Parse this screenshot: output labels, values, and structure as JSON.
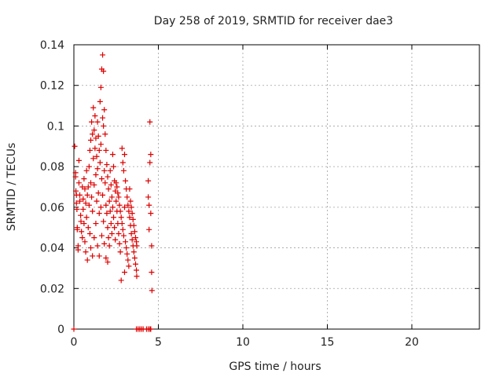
{
  "chart_data": {
    "type": "scatter",
    "title": "Day 258 of 2019, SRMTID for receiver dae3",
    "xlabel": "GPS time / hours",
    "ylabel": "SRMTID / TECUs",
    "xlim": [
      0,
      24
    ],
    "ylim": [
      0,
      0.14
    ],
    "xticks": [
      0,
      5,
      10,
      15,
      20
    ],
    "xtick_labels": [
      "0",
      "5",
      "10",
      "15",
      "20"
    ],
    "yticks": [
      0,
      0.02,
      0.04,
      0.06,
      0.08,
      0.1,
      0.12,
      0.14
    ],
    "ytick_labels": [
      "0",
      "0.02",
      "0.04",
      "0.06",
      "0.08",
      "0.1",
      "0.12",
      "0.14"
    ],
    "grid": true,
    "marker": "+",
    "series": [
      {
        "name": "SRMTID",
        "color": "#dd0000",
        "points": [
          [
            0.05,
            0.09
          ],
          [
            0.1,
            0.077
          ],
          [
            0.1,
            0.075
          ],
          [
            0.12,
            0.068
          ],
          [
            0.15,
            0.066
          ],
          [
            0.15,
            0.062
          ],
          [
            0.18,
            0.059
          ],
          [
            0.2,
            0.05
          ],
          [
            0.2,
            0.049
          ],
          [
            0.25,
            0.041
          ],
          [
            0.25,
            0.039
          ],
          [
            0.3,
            0.083
          ],
          [
            0.3,
            0.072
          ],
          [
            0.35,
            0.066
          ],
          [
            0.35,
            0.063
          ],
          [
            0.4,
            0.056
          ],
          [
            0.42,
            0.053
          ],
          [
            0.45,
            0.048
          ],
          [
            0.5,
            0.07
          ],
          [
            0.5,
            0.045
          ],
          [
            0.55,
            0.064
          ],
          [
            0.55,
            0.059
          ],
          [
            0.6,
            0.074
          ],
          [
            0.6,
            0.052
          ],
          [
            0.65,
            0.069
          ],
          [
            0.65,
            0.043
          ],
          [
            0.7,
            0.062
          ],
          [
            0.7,
            0.038
          ],
          [
            0.75,
            0.078
          ],
          [
            0.75,
            0.055
          ],
          [
            0.8,
            0.066
          ],
          [
            0.8,
            0.034
          ],
          [
            0.85,
            0.07
          ],
          [
            0.85,
            0.05
          ],
          [
            0.9,
            0.08
          ],
          [
            0.9,
            0.061
          ],
          [
            0.95,
            0.088
          ],
          [
            0.95,
            0.047
          ],
          [
            1.0,
            0.093
          ],
          [
            1.0,
            0.072
          ],
          [
            1.0,
            0.04
          ],
          [
            1.05,
            0.102
          ],
          [
            1.05,
            0.065
          ],
          [
            1.1,
            0.096
          ],
          [
            1.1,
            0.058
          ],
          [
            1.1,
            0.036
          ],
          [
            1.15,
            0.109
          ],
          [
            1.15,
            0.084
          ],
          [
            1.2,
            0.098
          ],
          [
            1.2,
            0.071
          ],
          [
            1.2,
            0.045
          ],
          [
            1.25,
            0.105
          ],
          [
            1.25,
            0.089
          ],
          [
            1.3,
            0.094
          ],
          [
            1.3,
            0.076
          ],
          [
            1.3,
            0.052
          ],
          [
            1.35,
            0.085
          ],
          [
            1.35,
            0.063
          ],
          [
            1.4,
            0.102
          ],
          [
            1.4,
            0.079
          ],
          [
            1.4,
            0.041
          ],
          [
            1.45,
            0.095
          ],
          [
            1.45,
            0.067
          ],
          [
            1.5,
            0.088
          ],
          [
            1.5,
            0.057
          ],
          [
            1.5,
            0.036
          ],
          [
            1.55,
            0.112
          ],
          [
            1.55,
            0.082
          ],
          [
            1.6,
            0.119
          ],
          [
            1.6,
            0.091
          ],
          [
            1.6,
            0.06
          ],
          [
            1.65,
            0.128
          ],
          [
            1.65,
            0.074
          ],
          [
            1.65,
            0.046
          ],
          [
            1.7,
            0.135
          ],
          [
            1.7,
            0.104
          ],
          [
            1.7,
            0.066
          ],
          [
            1.75,
            0.127
          ],
          [
            1.75,
            0.1
          ],
          [
            1.75,
            0.053
          ],
          [
            1.8,
            0.108
          ],
          [
            1.8,
            0.078
          ],
          [
            1.8,
            0.042
          ],
          [
            1.85,
            0.096
          ],
          [
            1.85,
            0.072
          ],
          [
            1.9,
            0.088
          ],
          [
            1.9,
            0.061
          ],
          [
            1.9,
            0.035
          ],
          [
            1.95,
            0.081
          ],
          [
            1.95,
            0.057
          ],
          [
            2.0,
            0.075
          ],
          [
            2.0,
            0.05
          ],
          [
            2.0,
            0.033
          ],
          [
            2.05,
            0.069
          ],
          [
            2.05,
            0.045
          ],
          [
            2.1,
            0.063
          ],
          [
            2.1,
            0.041
          ],
          [
            2.15,
            0.078
          ],
          [
            2.15,
            0.058
          ],
          [
            2.2,
            0.071
          ],
          [
            2.2,
            0.052
          ],
          [
            2.25,
            0.065
          ],
          [
            2.25,
            0.047
          ],
          [
            2.3,
            0.086
          ],
          [
            2.3,
            0.06
          ],
          [
            2.35,
            0.08
          ],
          [
            2.35,
            0.055
          ],
          [
            2.4,
            0.073
          ],
          [
            2.4,
            0.05
          ],
          [
            2.45,
            0.068
          ],
          [
            2.45,
            0.044
          ],
          [
            2.5,
            0.072
          ],
          [
            2.5,
            0.063
          ],
          [
            2.55,
            0.07
          ],
          [
            2.55,
            0.058
          ],
          [
            2.6,
            0.067
          ],
          [
            2.6,
            0.052
          ],
          [
            2.65,
            0.065
          ],
          [
            2.65,
            0.047
          ],
          [
            2.7,
            0.061
          ],
          [
            2.7,
            0.042
          ],
          [
            2.75,
            0.058
          ],
          [
            2.75,
            0.038
          ],
          [
            2.8,
            0.055
          ],
          [
            2.8,
            0.024
          ],
          [
            2.85,
            0.089
          ],
          [
            2.85,
            0.052
          ],
          [
            2.9,
            0.082
          ],
          [
            2.9,
            0.049
          ],
          [
            2.95,
            0.078
          ],
          [
            2.95,
            0.046
          ],
          [
            3.0,
            0.086
          ],
          [
            3.0,
            0.06
          ],
          [
            3.0,
            0.028
          ],
          [
            3.05,
            0.073
          ],
          [
            3.05,
            0.043
          ],
          [
            3.1,
            0.069
          ],
          [
            3.1,
            0.04
          ],
          [
            3.15,
            0.065
          ],
          [
            3.15,
            0.037
          ],
          [
            3.2,
            0.061
          ],
          [
            3.2,
            0.034
          ],
          [
            3.25,
            0.058
          ],
          [
            3.25,
            0.031
          ],
          [
            3.3,
            0.069
          ],
          [
            3.3,
            0.055
          ],
          [
            3.35,
            0.063
          ],
          [
            3.35,
            0.051
          ],
          [
            3.4,
            0.06
          ],
          [
            3.4,
            0.047
          ],
          [
            3.45,
            0.057
          ],
          [
            3.45,
            0.044
          ],
          [
            3.5,
            0.054
          ],
          [
            3.5,
            0.041
          ],
          [
            3.55,
            0.051
          ],
          [
            3.55,
            0.038
          ],
          [
            3.6,
            0.048
          ],
          [
            3.6,
            0.035
          ],
          [
            3.65,
            0.045
          ],
          [
            3.65,
            0.032
          ],
          [
            3.7,
            0.043
          ],
          [
            3.7,
            0.029
          ],
          [
            3.72,
            0.041
          ],
          [
            3.72,
            0.026
          ],
          [
            4.4,
            0.073
          ],
          [
            4.4,
            0.065
          ],
          [
            4.45,
            0.061
          ],
          [
            4.45,
            0.049
          ],
          [
            4.5,
            0.102
          ],
          [
            4.5,
            0.082
          ],
          [
            4.55,
            0.086
          ],
          [
            4.55,
            0.057
          ],
          [
            4.6,
            0.041
          ],
          [
            4.6,
            0.028
          ],
          [
            4.62,
            0.019
          ],
          [
            0.0,
            0.0
          ],
          [
            3.7,
            0.0
          ],
          [
            3.8,
            0.0
          ],
          [
            3.9,
            0.0
          ],
          [
            4.0,
            0.0
          ],
          [
            4.1,
            0.0
          ],
          [
            4.3,
            0.0
          ],
          [
            4.4,
            0.0
          ],
          [
            4.5,
            0.0
          ],
          [
            4.55,
            0.0
          ]
        ]
      }
    ]
  }
}
